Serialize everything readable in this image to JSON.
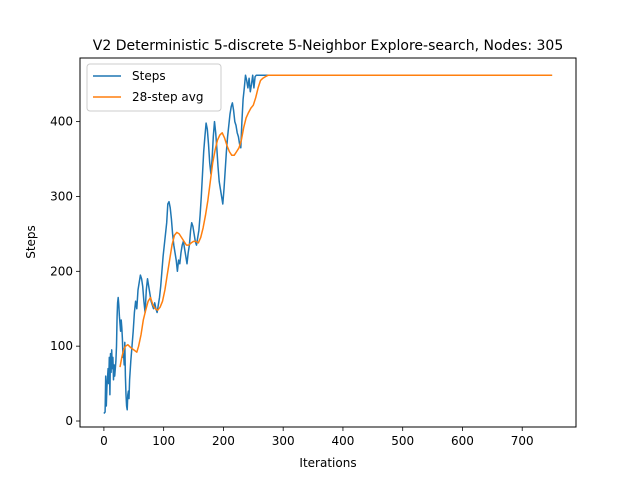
{
  "chart_data": {
    "type": "line",
    "title": "V2 Deterministic 5-discrete 5-Neighbor Explore-search,  Nodes: 305",
    "xlabel": "Iterations",
    "ylabel": "Steps",
    "xlim": [
      -40,
      790
    ],
    "ylim": [
      -8,
      485
    ],
    "x_ticks": [
      0,
      100,
      200,
      300,
      400,
      500,
      600,
      700
    ],
    "y_ticks": [
      0,
      100,
      200,
      300,
      400
    ],
    "legend": "top-left",
    "series": [
      {
        "name": "Steps",
        "color": "#1f77b4",
        "points": [
          [
            0,
            10
          ],
          [
            2,
            12
          ],
          [
            3,
            60
          ],
          [
            4,
            20
          ],
          [
            5,
            45
          ],
          [
            7,
            70
          ],
          [
            8,
            50
          ],
          [
            9,
            85
          ],
          [
            10,
            35
          ],
          [
            11,
            90
          ],
          [
            12,
            65
          ],
          [
            13,
            95
          ],
          [
            14,
            70
          ],
          [
            15,
            85
          ],
          [
            16,
            55
          ],
          [
            17,
            75
          ],
          [
            18,
            60
          ],
          [
            20,
            80
          ],
          [
            21,
            100
          ],
          [
            22,
            140
          ],
          [
            23,
            158
          ],
          [
            24,
            165
          ],
          [
            25,
            155
          ],
          [
            26,
            140
          ],
          [
            27,
            130
          ],
          [
            28,
            120
          ],
          [
            29,
            135
          ],
          [
            30,
            125
          ],
          [
            31,
            110
          ],
          [
            32,
            85
          ],
          [
            33,
            90
          ],
          [
            34,
            75
          ],
          [
            35,
            105
          ],
          [
            36,
            60
          ],
          [
            37,
            35
          ],
          [
            38,
            20
          ],
          [
            39,
            15
          ],
          [
            40,
            35
          ],
          [
            41,
            40
          ],
          [
            42,
            30
          ],
          [
            43,
            55
          ],
          [
            45,
            80
          ],
          [
            47,
            100
          ],
          [
            49,
            120
          ],
          [
            51,
            145
          ],
          [
            53,
            160
          ],
          [
            55,
            150
          ],
          [
            57,
            175
          ],
          [
            59,
            185
          ],
          [
            61,
            195
          ],
          [
            63,
            190
          ],
          [
            65,
            180
          ],
          [
            67,
            160
          ],
          [
            69,
            145
          ],
          [
            71,
            175
          ],
          [
            73,
            190
          ],
          [
            75,
            180
          ],
          [
            77,
            170
          ],
          [
            79,
            160
          ],
          [
            81,
            155
          ],
          [
            83,
            150
          ],
          [
            85,
            158
          ],
          [
            87,
            150
          ],
          [
            89,
            145
          ],
          [
            91,
            155
          ],
          [
            93,
            165
          ],
          [
            95,
            180
          ],
          [
            97,
            200
          ],
          [
            99,
            220
          ],
          [
            101,
            235
          ],
          [
            103,
            250
          ],
          [
            105,
            265
          ],
          [
            107,
            290
          ],
          [
            109,
            293
          ],
          [
            111,
            285
          ],
          [
            113,
            270
          ],
          [
            115,
            250
          ],
          [
            117,
            235
          ],
          [
            119,
            225
          ],
          [
            121,
            215
          ],
          [
            123,
            200
          ],
          [
            125,
            215
          ],
          [
            127,
            210
          ],
          [
            129,
            225
          ],
          [
            131,
            235
          ],
          [
            133,
            240
          ],
          [
            135,
            230
          ],
          [
            137,
            220
          ],
          [
            139,
            210
          ],
          [
            141,
            225
          ],
          [
            143,
            235
          ],
          [
            145,
            255
          ],
          [
            147,
            265
          ],
          [
            149,
            260
          ],
          [
            151,
            250
          ],
          [
            153,
            240
          ],
          [
            155,
            235
          ],
          [
            157,
            245
          ],
          [
            159,
            255
          ],
          [
            161,
            275
          ],
          [
            163,
            300
          ],
          [
            165,
            330
          ],
          [
            167,
            360
          ],
          [
            169,
            380
          ],
          [
            171,
            398
          ],
          [
            173,
            390
          ],
          [
            175,
            370
          ],
          [
            177,
            345
          ],
          [
            179,
            330
          ],
          [
            181,
            350
          ],
          [
            183,
            380
          ],
          [
            185,
            400
          ],
          [
            187,
            385
          ],
          [
            189,
            365
          ],
          [
            191,
            340
          ],
          [
            193,
            320
          ],
          [
            195,
            310
          ],
          [
            197,
            300
          ],
          [
            199,
            290
          ],
          [
            201,
            310
          ],
          [
            203,
            335
          ],
          [
            205,
            360
          ],
          [
            207,
            380
          ],
          [
            209,
            395
          ],
          [
            211,
            410
          ],
          [
            213,
            420
          ],
          [
            215,
            425
          ],
          [
            217,
            415
          ],
          [
            219,
            400
          ],
          [
            221,
            395
          ],
          [
            223,
            385
          ],
          [
            225,
            380
          ],
          [
            227,
            370
          ],
          [
            229,
            365
          ],
          [
            231,
            400
          ],
          [
            233,
            430
          ],
          [
            235,
            445
          ],
          [
            237,
            462
          ],
          [
            239,
            455
          ],
          [
            241,
            445
          ],
          [
            243,
            458
          ],
          [
            245,
            440
          ],
          [
            247,
            450
          ],
          [
            249,
            462
          ],
          [
            251,
            445
          ],
          [
            253,
            460
          ],
          [
            255,
            462
          ],
          [
            300,
            462
          ],
          [
            400,
            462
          ],
          [
            500,
            462
          ],
          [
            600,
            462
          ],
          [
            700,
            462
          ],
          [
            750,
            462
          ]
        ]
      },
      {
        "name": "28-step avg",
        "color": "#ff7f0e",
        "points": [
          [
            27,
            72
          ],
          [
            30,
            85
          ],
          [
            33,
            95
          ],
          [
            36,
            100
          ],
          [
            40,
            102
          ],
          [
            45,
            98
          ],
          [
            50,
            95
          ],
          [
            55,
            92
          ],
          [
            58,
            100
          ],
          [
            62,
            115
          ],
          [
            66,
            135
          ],
          [
            70,
            148
          ],
          [
            74,
            160
          ],
          [
            78,
            165
          ],
          [
            82,
            155
          ],
          [
            86,
            150
          ],
          [
            90,
            148
          ],
          [
            94,
            152
          ],
          [
            98,
            160
          ],
          [
            102,
            175
          ],
          [
            106,
            195
          ],
          [
            110,
            215
          ],
          [
            114,
            235
          ],
          [
            118,
            248
          ],
          [
            122,
            252
          ],
          [
            126,
            250
          ],
          [
            130,
            245
          ],
          [
            134,
            240
          ],
          [
            138,
            235
          ],
          [
            142,
            235
          ],
          [
            146,
            238
          ],
          [
            150,
            240
          ],
          [
            154,
            240
          ],
          [
            158,
            238
          ],
          [
            162,
            245
          ],
          [
            166,
            258
          ],
          [
            170,
            275
          ],
          [
            174,
            295
          ],
          [
            178,
            320
          ],
          [
            182,
            345
          ],
          [
            186,
            362
          ],
          [
            190,
            375
          ],
          [
            194,
            382
          ],
          [
            198,
            385
          ],
          [
            202,
            378
          ],
          [
            206,
            368
          ],
          [
            210,
            360
          ],
          [
            214,
            355
          ],
          [
            218,
            355
          ],
          [
            222,
            360
          ],
          [
            226,
            365
          ],
          [
            230,
            375
          ],
          [
            234,
            392
          ],
          [
            238,
            405
          ],
          [
            242,
            412
          ],
          [
            246,
            418
          ],
          [
            250,
            422
          ],
          [
            254,
            432
          ],
          [
            258,
            445
          ],
          [
            262,
            455
          ],
          [
            266,
            458
          ],
          [
            270,
            460
          ],
          [
            275,
            462
          ],
          [
            280,
            462
          ],
          [
            300,
            462
          ],
          [
            400,
            462
          ],
          [
            500,
            462
          ],
          [
            600,
            462
          ],
          [
            700,
            462
          ],
          [
            750,
            462
          ]
        ]
      }
    ]
  }
}
